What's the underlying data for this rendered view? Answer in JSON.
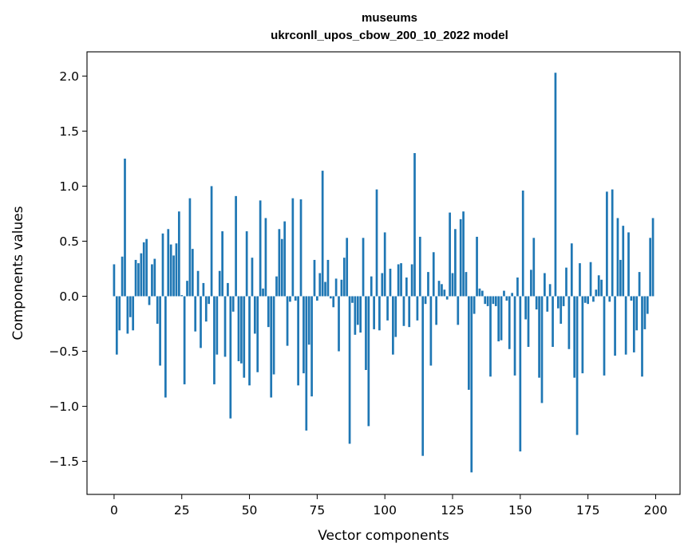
{
  "chart_data": {
    "type": "bar",
    "title": "museums",
    "subtitle": "ukrconll_upos_cbow_200_10_2022 model",
    "xlabel": "Vector components",
    "ylabel": "Components values",
    "xlim": [
      -10,
      209
    ],
    "ylim": [
      -1.8,
      2.22
    ],
    "xticks": [
      0,
      25,
      50,
      75,
      100,
      125,
      150,
      175,
      200
    ],
    "yticks": [
      -1.5,
      -1.0,
      -0.5,
      0.0,
      0.5,
      1.0,
      1.5,
      2.0
    ],
    "ytick_labels": [
      "−1.5",
      "−1.0",
      "−0.5",
      "0.0",
      "0.5",
      "1.0",
      "1.5",
      "2.0"
    ],
    "grid": false,
    "bar_color": "#1f77b4",
    "x_start": 0,
    "values": [
      0.29,
      -0.53,
      -0.31,
      0.36,
      1.25,
      -0.34,
      -0.19,
      -0.31,
      0.33,
      0.3,
      0.39,
      0.49,
      0.52,
      -0.08,
      0.29,
      0.34,
      -0.25,
      -0.63,
      0.57,
      -0.92,
      0.61,
      0.47,
      0.37,
      0.48,
      0.77,
      0.01,
      -0.8,
      0.14,
      0.89,
      0.43,
      -0.32,
      0.23,
      -0.47,
      0.12,
      -0.23,
      -0.07,
      1.0,
      -0.8,
      -0.53,
      0.23,
      0.59,
      -0.55,
      0.12,
      -1.11,
      -0.14,
      0.91,
      -0.59,
      -0.61,
      -0.74,
      0.59,
      -0.81,
      0.35,
      -0.34,
      -0.69,
      0.87,
      0.07,
      0.71,
      -0.28,
      -0.92,
      -0.71,
      0.18,
      0.61,
      0.52,
      0.68,
      -0.45,
      -0.05,
      0.89,
      -0.04,
      -0.81,
      0.88,
      -0.7,
      -1.22,
      -0.44,
      -0.91,
      0.33,
      -0.04,
      0.21,
      1.14,
      0.13,
      0.33,
      -0.02,
      -0.1,
      0.16,
      -0.5,
      0.15,
      0.35,
      0.53,
      -1.34,
      -0.06,
      -0.35,
      -0.26,
      -0.33,
      0.53,
      -0.67,
      -1.18,
      0.18,
      -0.3,
      0.97,
      -0.31,
      0.21,
      0.58,
      -0.22,
      0.25,
      -0.53,
      -0.37,
      0.29,
      0.3,
      -0.27,
      0.17,
      -0.28,
      0.29,
      1.3,
      -0.22,
      0.54,
      -1.45,
      -0.07,
      0.22,
      -0.63,
      0.4,
      -0.26,
      0.14,
      0.11,
      0.06,
      -0.03,
      0.76,
      0.21,
      0.61,
      -0.26,
      0.7,
      0.77,
      0.22,
      -0.85,
      -1.6,
      -0.16,
      0.54,
      0.07,
      0.05,
      -0.07,
      -0.09,
      -0.73,
      -0.07,
      -0.09,
      -0.41,
      -0.4,
      0.05,
      -0.04,
      -0.48,
      0.03,
      -0.72,
      0.17,
      -1.41,
      0.96,
      -0.21,
      -0.46,
      0.24,
      0.53,
      -0.12,
      -0.74,
      -0.97,
      0.21,
      -0.14,
      0.11,
      -0.46,
      2.03,
      -0.11,
      -0.25,
      -0.09,
      0.26,
      -0.48,
      0.48,
      -0.74,
      -1.26,
      0.3,
      -0.7,
      -0.06,
      -0.07,
      0.31,
      -0.05,
      0.06,
      0.19,
      0.15,
      -0.72,
      0.95,
      -0.05,
      0.97,
      -0.54,
      0.71,
      0.33,
      0.64,
      -0.53,
      0.58,
      -0.04,
      -0.51,
      -0.31,
      0.22,
      -0.73,
      -0.3,
      -0.16,
      0.53,
      0.71
    ]
  }
}
